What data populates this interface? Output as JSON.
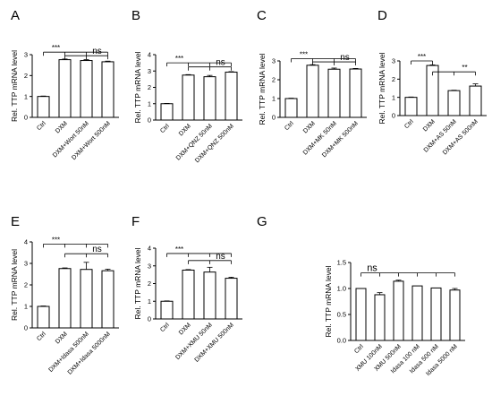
{
  "chart_data": [
    {
      "type": "bar",
      "panel": "A",
      "ylabel": "Rel. TTP mRNA level",
      "ylim": [
        0,
        3
      ],
      "yticks": [
        "0",
        "1",
        "2",
        "3"
      ],
      "categories": [
        "Ctrl",
        "DXM",
        "DXM+Wort 50nM",
        "DXM+Wort 500nM"
      ],
      "values": [
        1.0,
        2.76,
        2.72,
        2.66
      ],
      "errors": [
        0.02,
        0.03,
        0.04,
        0.03
      ],
      "significance": [
        {
          "label": "***",
          "from": 0,
          "to": [
            1,
            2,
            3
          ],
          "y": 3.12
        },
        {
          "label": "ns",
          "from": 1,
          "to": [
            2,
            3
          ],
          "y": 2.95
        }
      ]
    },
    {
      "type": "bar",
      "panel": "B",
      "ylabel": "Rel. TTP mRNA level",
      "ylim": [
        0,
        4
      ],
      "yticks": [
        "0",
        "1",
        "2",
        "3",
        "4"
      ],
      "categories": [
        "Ctrl",
        "DXM",
        "DXM+QNZ 50nM",
        "DXM+QNZ 500nM"
      ],
      "values": [
        1.0,
        2.75,
        2.65,
        2.93
      ],
      "errors": [
        0.02,
        0.03,
        0.08,
        0.03
      ],
      "significance": [
        {
          "label": "***",
          "from": 0,
          "to": [
            1,
            2,
            3
          ],
          "y": 3.5
        },
        {
          "label": "ns",
          "from": 1,
          "to": [
            2,
            3
          ],
          "y": 3.25
        }
      ]
    },
    {
      "type": "bar",
      "panel": "C",
      "ylabel": "Rel. TTP mRNA level",
      "ylim": [
        0,
        3
      ],
      "yticks": [
        "0",
        "1",
        "2",
        "3"
      ],
      "categories": [
        "Ctrl",
        "DXM",
        "DXM+MK 50nM",
        "DXM+MK 500nM"
      ],
      "values": [
        1.0,
        2.77,
        2.56,
        2.57
      ],
      "errors": [
        0.02,
        0.03,
        0.06,
        0.03
      ],
      "significance": [
        {
          "label": "***",
          "from": 0,
          "to": [
            1,
            2,
            3
          ],
          "y": 3.12
        },
        {
          "label": "ns",
          "from": 1,
          "to": [
            2,
            3
          ],
          "y": 2.95
        }
      ]
    },
    {
      "type": "bar",
      "panel": "D",
      "ylabel": "Rel. TTP mRNA level",
      "ylim": [
        0,
        3
      ],
      "yticks": [
        "0",
        "1",
        "2",
        "3"
      ],
      "categories": [
        "Ctrl",
        "DXM",
        "DXM+AS 50nM",
        "DXM+AS 500nM"
      ],
      "values": [
        1.0,
        2.75,
        1.37,
        1.62
      ],
      "errors": [
        0.02,
        0.03,
        0.02,
        0.12
      ],
      "significance": [
        {
          "label": "***",
          "from": 0,
          "to": [
            1
          ],
          "y": 3.0
        },
        {
          "label": "**",
          "from": 1,
          "to": [
            2,
            3
          ],
          "y": 2.4
        }
      ]
    },
    {
      "type": "bar",
      "panel": "E",
      "ylabel": "Rel. TTP mRNA level",
      "ylim": [
        0,
        4
      ],
      "yticks": [
        "0",
        "1",
        "2",
        "3",
        "4"
      ],
      "categories": [
        "Ctrl",
        "DXM",
        "DXM+Idasa 500nM",
        "DXM+Idasa 5000nM"
      ],
      "values": [
        1.0,
        2.76,
        2.72,
        2.66
      ],
      "errors": [
        0.02,
        0.03,
        0.33,
        0.07
      ],
      "significance": [
        {
          "label": "***",
          "from": 0,
          "to": [
            1,
            2,
            3
          ],
          "y": 3.9
        },
        {
          "label": "ns",
          "from": 1,
          "to": [
            2,
            3
          ],
          "y": 3.45
        }
      ]
    },
    {
      "type": "bar",
      "panel": "F",
      "ylabel": "Rel. TTP mRNA level",
      "ylim": [
        0,
        4
      ],
      "yticks": [
        "0",
        "1",
        "2",
        "3",
        "4"
      ],
      "categories": [
        "Ctrl",
        "DXM",
        "DXM+XMU 50nM",
        "DXM+XMU 500nM"
      ],
      "values": [
        1.0,
        2.76,
        2.65,
        2.3
      ],
      "errors": [
        0.02,
        0.03,
        0.27,
        0.06
      ],
      "significance": [
        {
          "label": "***",
          "from": 0,
          "to": [
            1,
            2,
            3
          ],
          "y": 3.7
        },
        {
          "label": "ns",
          "from": 1,
          "to": [
            2,
            3
          ],
          "y": 3.3
        }
      ]
    },
    {
      "type": "bar",
      "panel": "G",
      "ylabel": "Rel. TTP mRNA level",
      "ylim": [
        0,
        1.5
      ],
      "yticks": [
        "0.0",
        "0.5",
        "1.0",
        "1.5"
      ],
      "categories": [
        "Ctrl",
        "XMU 100nM",
        "XMU 500nM",
        "Idasa 100 nM",
        "Idasa 500 nM",
        "Idasa 5000 nM"
      ],
      "values": [
        1.0,
        0.88,
        1.14,
        1.05,
        1.01,
        0.97
      ],
      "errors": [
        0.01,
        0.04,
        0.02,
        0.01,
        0.01,
        0.03
      ],
      "significance": [
        {
          "label": "ns",
          "from": 0,
          "to": [
            1,
            2,
            3,
            4,
            5
          ],
          "y": 1.3
        }
      ]
    }
  ]
}
